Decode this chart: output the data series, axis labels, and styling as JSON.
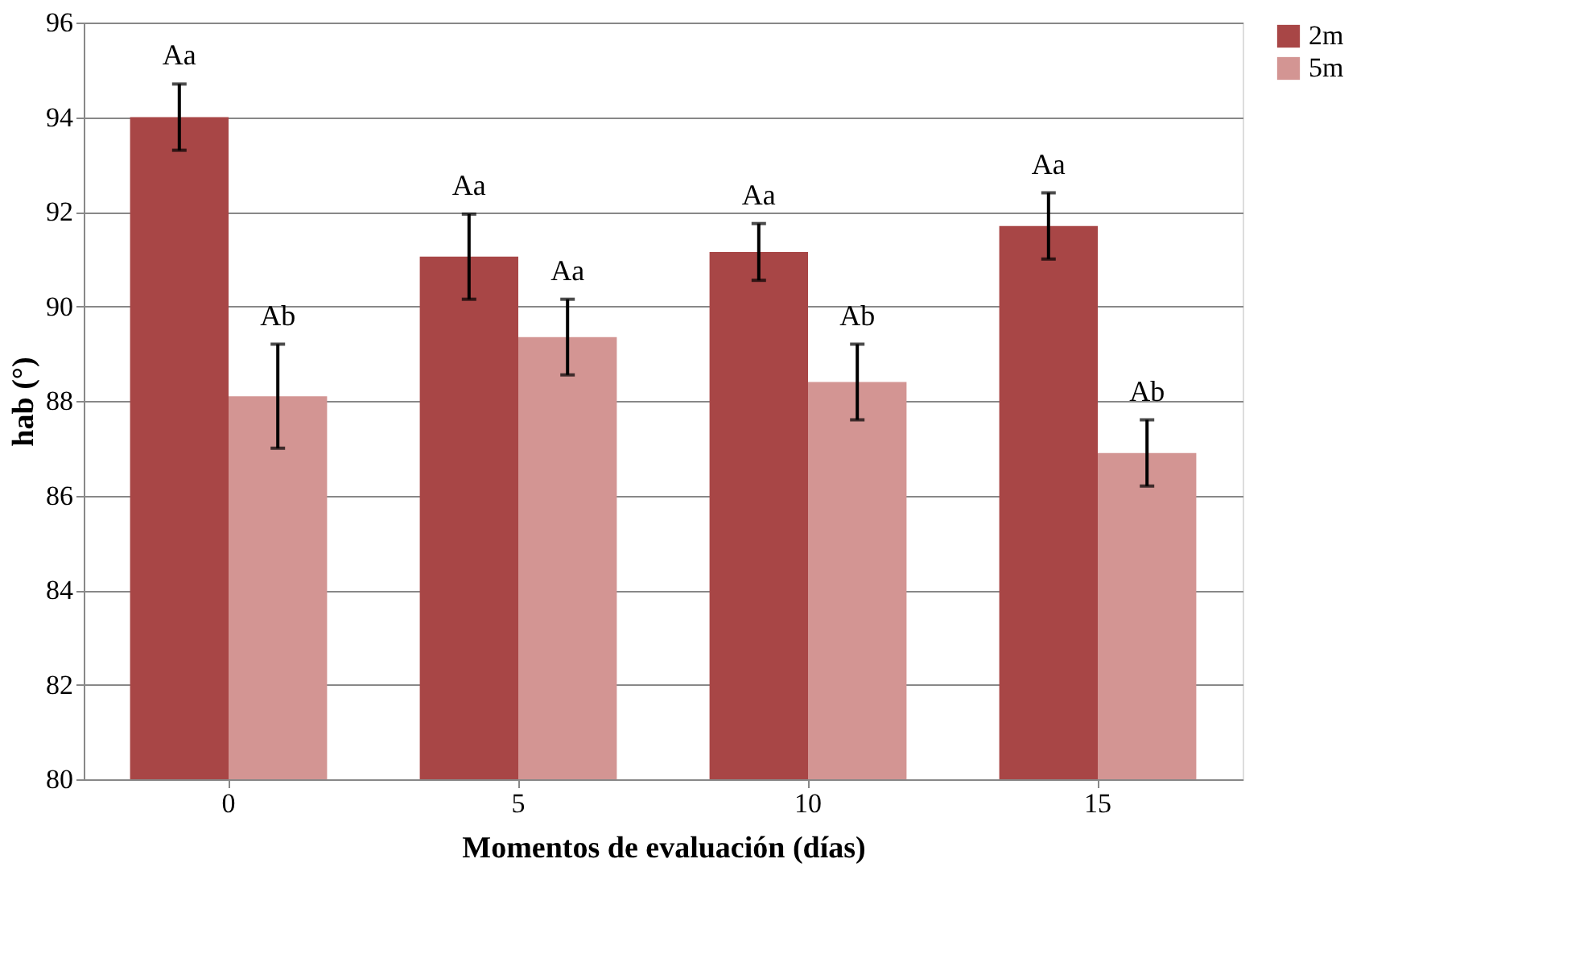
{
  "chart_data": {
    "type": "bar",
    "xlabel": "Momentos de evaluación (días)",
    "ylabel": "hab (°)",
    "categories": [
      "0",
      "5",
      "10",
      "15"
    ],
    "series": [
      {
        "name": "2m",
        "color": "#a84646",
        "values": [
          94.0,
          91.05,
          91.15,
          91.7
        ],
        "errors": [
          0.7,
          0.9,
          0.6,
          0.7
        ],
        "value_labels": [
          "Aa",
          "Aa",
          "Aa",
          "Aa"
        ]
      },
      {
        "name": "5m",
        "color": "#d39593",
        "values": [
          88.1,
          89.35,
          88.4,
          86.9
        ],
        "errors": [
          1.1,
          0.8,
          0.8,
          0.7
        ],
        "value_labels": [
          "Ab",
          "Aa",
          "Ab",
          "Ab"
        ]
      }
    ],
    "ylim": [
      80,
      96
    ],
    "yticks": [
      80,
      82,
      84,
      86,
      88,
      90,
      92,
      94,
      96
    ],
    "grid": "y",
    "legend": "right"
  }
}
